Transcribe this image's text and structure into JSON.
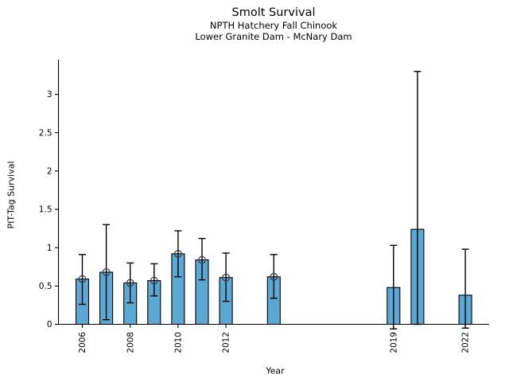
{
  "header": {
    "title": "Smolt Survival",
    "subtitle1": "NPTH Hatchery Fall Chinook",
    "subtitle2": "Lower Granite Dam - McNary Dam"
  },
  "chart_data": {
    "type": "bar",
    "title": "Smolt Survival",
    "subtitles": [
      "NPTH Hatchery Fall Chinook",
      "Lower Granite Dam - McNary Dam"
    ],
    "xlabel": "Year",
    "ylabel": "PIT-Tag Survival",
    "ylim": [
      0,
      3.45
    ],
    "xlim": [
      2005,
      2023
    ],
    "grid": false,
    "legend": null,
    "yticks": [
      0,
      0.5,
      1,
      1.5,
      2,
      2.5,
      3
    ],
    "ytick_labels": [
      "0",
      "0.5",
      "1",
      "1.5",
      "2",
      "2.5",
      "3"
    ],
    "xticks": [
      2006,
      2008,
      2010,
      2012,
      2019,
      2022
    ],
    "xtick_labels": [
      "2006",
      "2008",
      "2010",
      "2012",
      "2019",
      "2022"
    ],
    "bars": [
      {
        "year": 2006,
        "value": 0.59,
        "ci_low": 0.26,
        "ci_high": 0.91,
        "marker": true
      },
      {
        "year": 2007,
        "value": 0.68,
        "ci_low": 0.06,
        "ci_high": 1.3,
        "marker": true
      },
      {
        "year": 2008,
        "value": 0.54,
        "ci_low": 0.28,
        "ci_high": 0.8,
        "marker": true
      },
      {
        "year": 2009,
        "value": 0.57,
        "ci_low": 0.37,
        "ci_high": 0.79,
        "marker": true
      },
      {
        "year": 2010,
        "value": 0.92,
        "ci_low": 0.62,
        "ci_high": 1.22,
        "marker": true
      },
      {
        "year": 2011,
        "value": 0.84,
        "ci_low": 0.58,
        "ci_high": 1.12,
        "marker": true
      },
      {
        "year": 2012,
        "value": 0.61,
        "ci_low": 0.3,
        "ci_high": 0.93,
        "marker": true
      },
      {
        "year": 2014,
        "value": 0.62,
        "ci_low": 0.34,
        "ci_high": 0.91,
        "marker": true
      },
      {
        "year": 2019,
        "value": 0.48,
        "ci_low": -0.06,
        "ci_high": 1.03,
        "marker": false
      },
      {
        "year": 2020,
        "value": 1.24,
        "ci_low": 0.0,
        "ci_high": 3.3,
        "marker": false
      },
      {
        "year": 2022,
        "value": 0.38,
        "ci_low": -0.05,
        "ci_high": 0.98,
        "marker": false
      }
    ],
    "bar_color": "#5BA8D5",
    "bar_edge_color": "#000000",
    "error_color": "#000000",
    "marker_edge_color": "#3d3d3d",
    "axis_color": "#000000"
  }
}
